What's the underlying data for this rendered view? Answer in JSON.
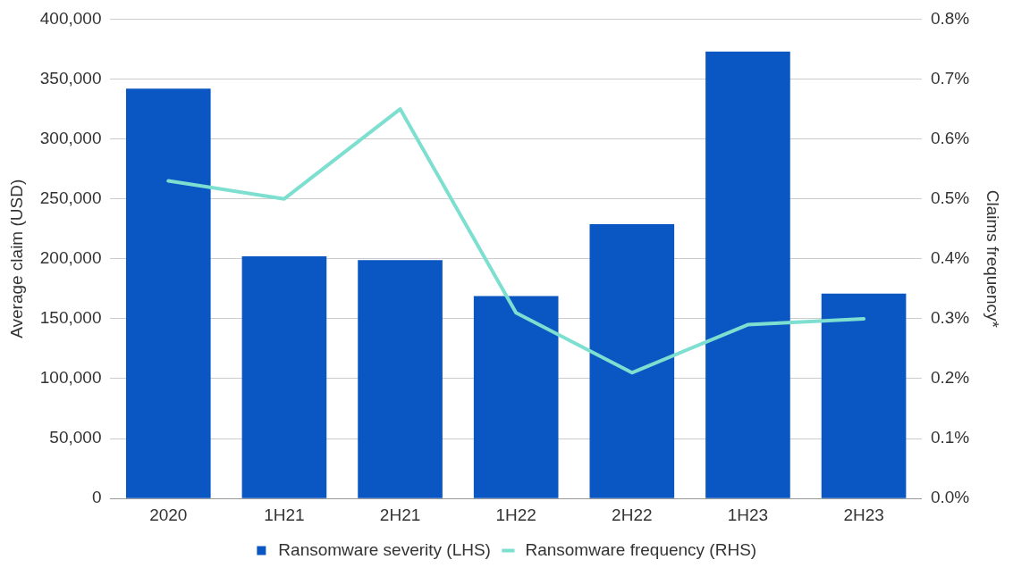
{
  "chart_data": {
    "type": "bar",
    "ylabel": "Average claim (USD)",
    "y2label": "Claims frequency*",
    "categories": [
      "2020",
      "1H21",
      "2H21",
      "1H22",
      "2H22",
      "1H23",
      "2H23"
    ],
    "series": [
      {
        "name": "Ransomware severity (LHS)",
        "color": "#0a56c2",
        "values": [
          342000,
          202000,
          199000,
          169000,
          229000,
          373000,
          171000
        ]
      },
      {
        "name": "Ransomware frequency (RHS)",
        "type": "line",
        "axis": "y2",
        "color": "#7ddfd0",
        "values": [
          0.53,
          0.5,
          0.65,
          0.31,
          0.21,
          0.29,
          0.3
        ]
      }
    ],
    "ylim": [
      0,
      400000
    ],
    "yticks": [
      {
        "value": 0,
        "label": "0"
      },
      {
        "value": 50000,
        "label": "50,000"
      },
      {
        "value": 100000,
        "label": "100,000"
      },
      {
        "value": 150000,
        "label": "150,000"
      },
      {
        "value": 200000,
        "label": "200,000"
      },
      {
        "value": 250000,
        "label": "250,000"
      },
      {
        "value": 300000,
        "label": "300,000"
      },
      {
        "value": 350000,
        "label": "350,000"
      },
      {
        "value": 400000,
        "label": "400,000"
      }
    ],
    "y2lim": [
      0,
      0.8
    ],
    "y2ticks": [
      {
        "value": 0,
        "label": "0.0%"
      },
      {
        "value": 0.1,
        "label": "0.1%"
      },
      {
        "value": 0.2,
        "label": "0.2%"
      },
      {
        "value": 0.3,
        "label": "0.3%"
      },
      {
        "value": 0.4,
        "label": "0.4%"
      },
      {
        "value": 0.5,
        "label": "0.5%"
      },
      {
        "value": 0.6,
        "label": "0.6%"
      },
      {
        "value": 0.7,
        "label": "0.7%"
      },
      {
        "value": 0.8,
        "label": "0.8%"
      }
    ],
    "grid": "y",
    "legend": "bottom",
    "marker": "none",
    "line_style": "solid"
  }
}
